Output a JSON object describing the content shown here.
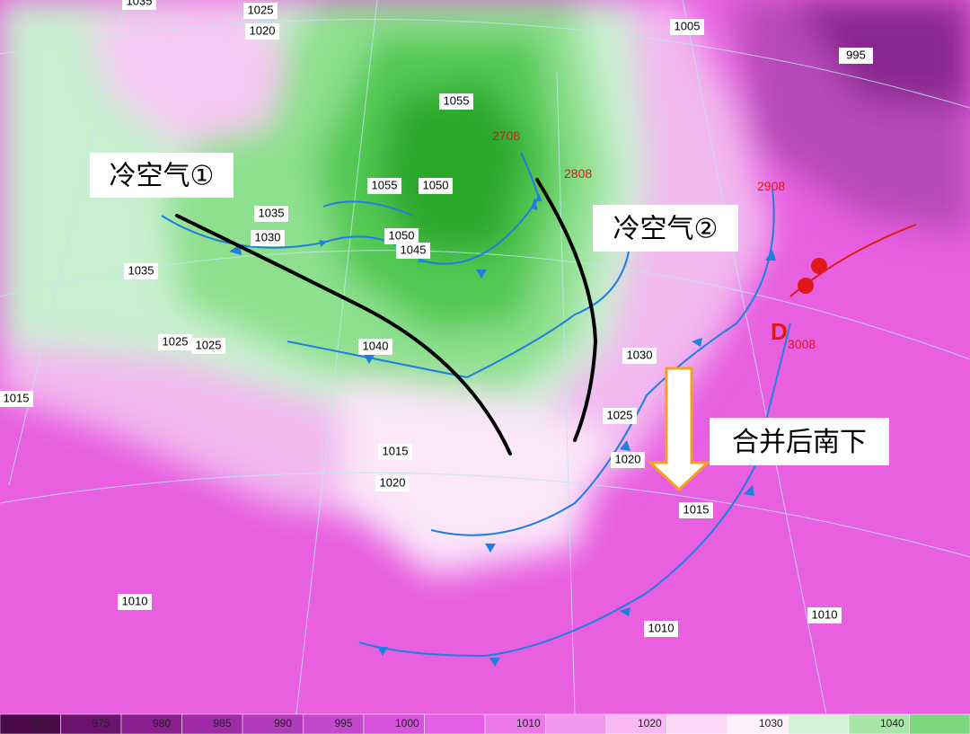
{
  "annotations": {
    "cold_air_1": "冷空气①",
    "cold_air_2": "冷空气②",
    "merge": "合并后南下"
  },
  "low": {
    "symbol": "D",
    "time": "3008"
  },
  "front_times": [
    "2708",
    "2808",
    "2908"
  ],
  "isobar_labels": [
    1035,
    1025,
    1020,
    1005,
    995,
    1055,
    1055,
    1050,
    1035,
    1030,
    1050,
    1045,
    1035,
    1040,
    1025,
    1025,
    1015,
    1030,
    1025,
    1020,
    1015,
    1020,
    1015,
    1010,
    1010,
    1010
  ],
  "colorbar": {
    "labels": [
      "970",
      "975",
      "980",
      "985",
      "990",
      "995",
      "1000",
      "1010",
      "1020",
      "1030",
      "1040"
    ]
  }
}
